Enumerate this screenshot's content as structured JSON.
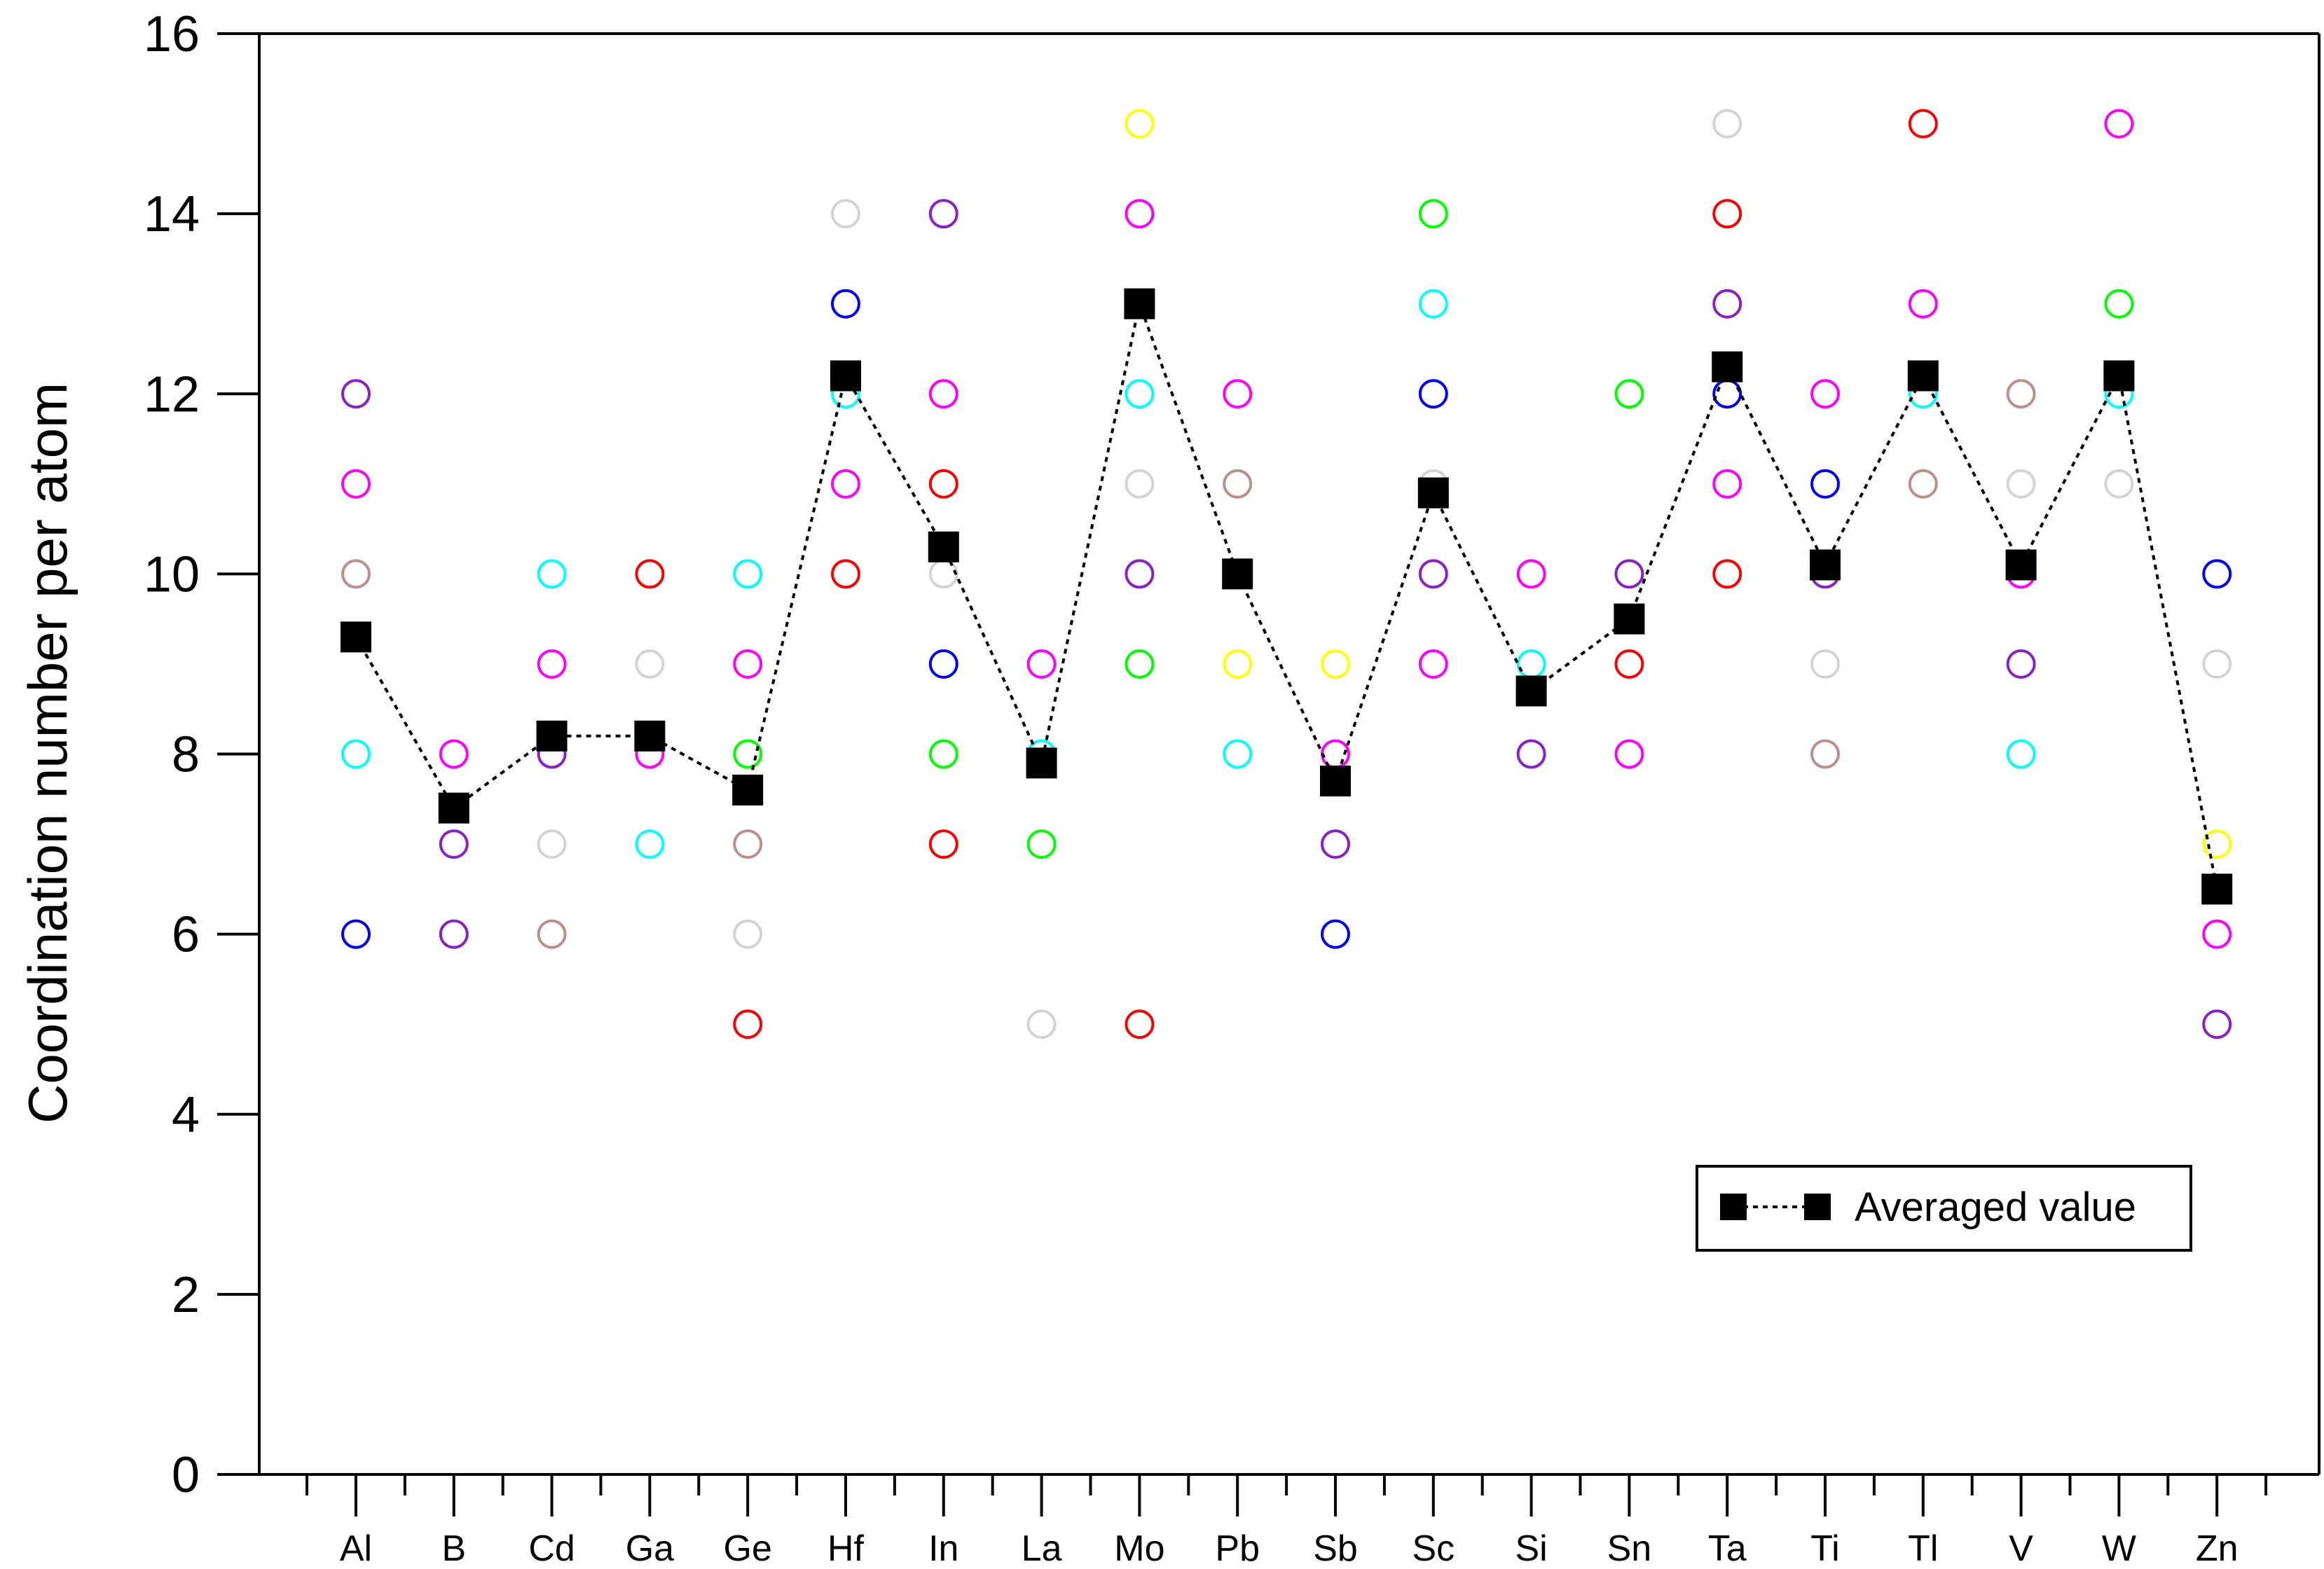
{
  "chart_data": {
    "type": "scatter",
    "title": "",
    "xlabel": "",
    "ylabel": "Coordination number per atom",
    "ylim": [
      0,
      16
    ],
    "yticks": [
      0,
      2,
      4,
      6,
      8,
      10,
      12,
      14,
      16
    ],
    "grid": false,
    "legend_position": "bottom-right",
    "categories": [
      "Al",
      "B",
      "Cd",
      "Ga",
      "Ge",
      "Hf",
      "In",
      "La",
      "Mo",
      "Pb",
      "Sb",
      "Sc",
      "Si",
      "Sn",
      "Ta",
      "Ti",
      "Tl",
      "V",
      "W",
      "Zn"
    ],
    "points": [
      {
        "x": "Al",
        "y": 12,
        "color": "#8B1FC8"
      },
      {
        "x": "Al",
        "y": 11,
        "color": "#FF00FF"
      },
      {
        "x": "Al",
        "y": 10,
        "color": "#BC8F8F"
      },
      {
        "x": "Al",
        "y": 8,
        "color": "#00FFFF"
      },
      {
        "x": "Al",
        "y": 6,
        "color": "#0000FF"
      },
      {
        "x": "B",
        "y": 8,
        "color": "#FF00FF"
      },
      {
        "x": "B",
        "y": 7,
        "color": "#8B1FC8"
      },
      {
        "x": "B",
        "y": 6,
        "color": "#8B1FC8"
      },
      {
        "x": "Cd",
        "y": 10,
        "color": "#00FFFF"
      },
      {
        "x": "Cd",
        "y": 9,
        "color": "#FF00FF"
      },
      {
        "x": "Cd",
        "y": 8,
        "color": "#8B1FC8"
      },
      {
        "x": "Cd",
        "y": 7,
        "color": "#D3D3D3"
      },
      {
        "x": "Cd",
        "y": 6,
        "color": "#BC8F8F"
      },
      {
        "x": "Ga",
        "y": 10,
        "color": "#FF0000"
      },
      {
        "x": "Ga",
        "y": 9,
        "color": "#D3D3D3"
      },
      {
        "x": "Ga",
        "y": 8,
        "color": "#FF00FF"
      },
      {
        "x": "Ga",
        "y": 7,
        "color": "#00FFFF"
      },
      {
        "x": "Ge",
        "y": 10,
        "color": "#00FFFF"
      },
      {
        "x": "Ge",
        "y": 9,
        "color": "#FF00FF"
      },
      {
        "x": "Ge",
        "y": 8,
        "color": "#00FF00"
      },
      {
        "x": "Ge",
        "y": 7,
        "color": "#BC8F8F"
      },
      {
        "x": "Ge",
        "y": 6,
        "color": "#D3D3D3"
      },
      {
        "x": "Ge",
        "y": 5,
        "color": "#FF0000"
      },
      {
        "x": "Hf",
        "y": 14,
        "color": "#D3D3D3"
      },
      {
        "x": "Hf",
        "y": 13,
        "color": "#0000FF"
      },
      {
        "x": "Hf",
        "y": 12,
        "color": "#00FFFF"
      },
      {
        "x": "Hf",
        "y": 11,
        "color": "#FF00FF"
      },
      {
        "x": "Hf",
        "y": 10,
        "color": "#FF0000"
      },
      {
        "x": "In",
        "y": 14,
        "color": "#8B1FC8"
      },
      {
        "x": "In",
        "y": 12,
        "color": "#FF00FF"
      },
      {
        "x": "In",
        "y": 11,
        "color": "#FF0000"
      },
      {
        "x": "In",
        "y": 10,
        "color": "#D3D3D3"
      },
      {
        "x": "In",
        "y": 9,
        "color": "#0000FF"
      },
      {
        "x": "In",
        "y": 8,
        "color": "#00FF00"
      },
      {
        "x": "In",
        "y": 7,
        "color": "#FF0000"
      },
      {
        "x": "La",
        "y": 9,
        "color": "#FF00FF"
      },
      {
        "x": "La",
        "y": 8,
        "color": "#00FFFF"
      },
      {
        "x": "La",
        "y": 7,
        "color": "#00FF00"
      },
      {
        "x": "La",
        "y": 5,
        "color": "#D3D3D3"
      },
      {
        "x": "Mo",
        "y": 15,
        "color": "#FFFF00"
      },
      {
        "x": "Mo",
        "y": 14,
        "color": "#FF00FF"
      },
      {
        "x": "Mo",
        "y": 12,
        "color": "#00FFFF"
      },
      {
        "x": "Mo",
        "y": 11,
        "color": "#D3D3D3"
      },
      {
        "x": "Mo",
        "y": 10,
        "color": "#8B1FC8"
      },
      {
        "x": "Mo",
        "y": 9,
        "color": "#00FF00"
      },
      {
        "x": "Mo",
        "y": 5,
        "color": "#FF0000"
      },
      {
        "x": "Pb",
        "y": 12,
        "color": "#FF00FF"
      },
      {
        "x": "Pb",
        "y": 11,
        "color": "#BC8F8F"
      },
      {
        "x": "Pb",
        "y": 9,
        "color": "#FFFF00"
      },
      {
        "x": "Pb",
        "y": 8,
        "color": "#00FFFF"
      },
      {
        "x": "Sb",
        "y": 9,
        "color": "#FFFF00"
      },
      {
        "x": "Sb",
        "y": 8,
        "color": "#FF00FF"
      },
      {
        "x": "Sb",
        "y": 7,
        "color": "#8B1FC8"
      },
      {
        "x": "Sb",
        "y": 6,
        "color": "#0000FF"
      },
      {
        "x": "Sc",
        "y": 14,
        "color": "#00FF00"
      },
      {
        "x": "Sc",
        "y": 13,
        "color": "#00FFFF"
      },
      {
        "x": "Sc",
        "y": 12,
        "color": "#0000FF"
      },
      {
        "x": "Sc",
        "y": 11,
        "color": "#D3D3D3"
      },
      {
        "x": "Sc",
        "y": 10,
        "color": "#8B1FC8"
      },
      {
        "x": "Sc",
        "y": 9,
        "color": "#FF00FF"
      },
      {
        "x": "Si",
        "y": 10,
        "color": "#FF00FF"
      },
      {
        "x": "Si",
        "y": 9,
        "color": "#00FFFF"
      },
      {
        "x": "Si",
        "y": 8,
        "color": "#8B1FC8"
      },
      {
        "x": "Sn",
        "y": 12,
        "color": "#00FF00"
      },
      {
        "x": "Sn",
        "y": 10,
        "color": "#8B1FC8"
      },
      {
        "x": "Sn",
        "y": 9,
        "color": "#FF0000"
      },
      {
        "x": "Sn",
        "y": 8,
        "color": "#FF00FF"
      },
      {
        "x": "Ta",
        "y": 15,
        "color": "#D3D3D3"
      },
      {
        "x": "Ta",
        "y": 14,
        "color": "#FF0000"
      },
      {
        "x": "Ta",
        "y": 13,
        "color": "#8B1FC8"
      },
      {
        "x": "Ta",
        "y": 12,
        "color": "#0000FF"
      },
      {
        "x": "Ta",
        "y": 11,
        "color": "#FF00FF"
      },
      {
        "x": "Ta",
        "y": 10,
        "color": "#FF0000"
      },
      {
        "x": "Ti",
        "y": 12,
        "color": "#FF00FF"
      },
      {
        "x": "Ti",
        "y": 11,
        "color": "#0000FF"
      },
      {
        "x": "Ti",
        "y": 10,
        "color": "#8B1FC8"
      },
      {
        "x": "Ti",
        "y": 9,
        "color": "#D3D3D3"
      },
      {
        "x": "Ti",
        "y": 8,
        "color": "#BC8F8F"
      },
      {
        "x": "Tl",
        "y": 15,
        "color": "#FF0000"
      },
      {
        "x": "Tl",
        "y": 13,
        "color": "#FF00FF"
      },
      {
        "x": "Tl",
        "y": 12,
        "color": "#00FFFF"
      },
      {
        "x": "Tl",
        "y": 11,
        "color": "#BC8F8F"
      },
      {
        "x": "V",
        "y": 12,
        "color": "#BC8F8F"
      },
      {
        "x": "V",
        "y": 11,
        "color": "#D3D3D3"
      },
      {
        "x": "V",
        "y": 10,
        "color": "#FF00FF"
      },
      {
        "x": "V",
        "y": 9,
        "color": "#8B1FC8"
      },
      {
        "x": "V",
        "y": 8,
        "color": "#00FFFF"
      },
      {
        "x": "W",
        "y": 15,
        "color": "#FF00FF"
      },
      {
        "x": "W",
        "y": 13,
        "color": "#00FF00"
      },
      {
        "x": "W",
        "y": 12,
        "color": "#00FFFF"
      },
      {
        "x": "W",
        "y": 11,
        "color": "#D3D3D3"
      },
      {
        "x": "Zn",
        "y": 10,
        "color": "#0000FF"
      },
      {
        "x": "Zn",
        "y": 9,
        "color": "#D3D3D3"
      },
      {
        "x": "Zn",
        "y": 7,
        "color": "#FFFF00"
      },
      {
        "x": "Zn",
        "y": 6,
        "color": "#FF00FF"
      },
      {
        "x": "Zn",
        "y": 5,
        "color": "#8B1FC8"
      }
    ],
    "series": [
      {
        "name": "Averaged value",
        "type": "line",
        "marker": "filled-square",
        "line_style": "dotted",
        "color": "#000000",
        "values": [
          9.3,
          7.4,
          8.2,
          8.2,
          7.6,
          12.2,
          10.3,
          7.9,
          13.0,
          10.0,
          7.7,
          10.9,
          8.7,
          9.5,
          12.3,
          10.1,
          12.2,
          10.1,
          12.2,
          6.5
        ]
      }
    ]
  }
}
